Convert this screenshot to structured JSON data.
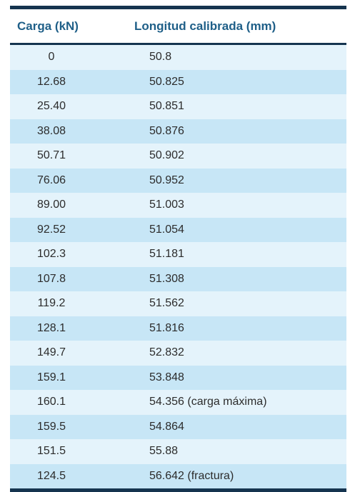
{
  "table": {
    "headers": [
      "Carga (kN)",
      "Longitud calibrada (mm)"
    ],
    "rows": [
      [
        "0",
        "50.8"
      ],
      [
        "12.68",
        "50.825"
      ],
      [
        "25.40",
        "50.851"
      ],
      [
        "38.08",
        "50.876"
      ],
      [
        "50.71",
        "50.902"
      ],
      [
        "76.06",
        "50.952"
      ],
      [
        "89.00",
        "51.003"
      ],
      [
        "92.52",
        "51.054"
      ],
      [
        "102.3",
        "51.181"
      ],
      [
        "107.8",
        "51.308"
      ],
      [
        "119.2",
        "51.562"
      ],
      [
        "128.1",
        "51.816"
      ],
      [
        "149.7",
        "52.832"
      ],
      [
        "159.1",
        "53.848"
      ],
      [
        "160.1",
        "54.356 (carga máxima)"
      ],
      [
        "159.5",
        "54.864"
      ],
      [
        "151.5",
        "55.88"
      ],
      [
        "124.5",
        "56.642 (fractura)"
      ]
    ]
  },
  "colors": {
    "header_text": "#1f5f88",
    "rule": "#15344f",
    "row_light": "#e4f3fb",
    "row_dark": "#c7e6f6"
  }
}
